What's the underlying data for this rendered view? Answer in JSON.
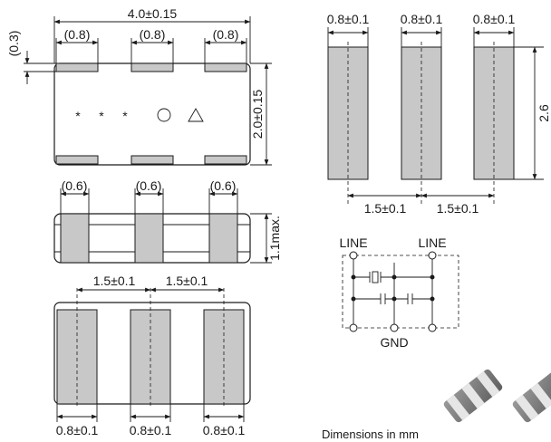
{
  "top_view": {
    "length": "4.0±0.15",
    "pad_offset": "(0.3)",
    "pad_widths": [
      "(0.8)",
      "(0.8)",
      "(0.8)"
    ],
    "height": "2.0±0.15",
    "marking_stars": [
      "*",
      "*",
      "*"
    ],
    "marking_circle": "○",
    "marking_triangle": "△"
  },
  "side_view": {
    "pad_widths": [
      "(0.6)",
      "(0.6)",
      "(0.6)"
    ],
    "thickness": "1.1max."
  },
  "bottom_view": {
    "pitch_labels": [
      "1.5±0.1",
      "1.5±0.1"
    ],
    "pad_widths": [
      "0.8±0.1",
      "0.8±0.1",
      "0.8±0.1"
    ]
  },
  "land_pattern": {
    "pad_widths": [
      "0.8±0.1",
      "0.8±0.1",
      "0.8±0.1"
    ],
    "pad_length": "2.6",
    "pitch_labels": [
      "1.5±0.1",
      "1.5±0.1"
    ]
  },
  "circuit": {
    "labels": [
      "LINE",
      "LINE"
    ],
    "ground_label": "GND"
  },
  "footer": {
    "units_note": "Dimensions in mm"
  }
}
